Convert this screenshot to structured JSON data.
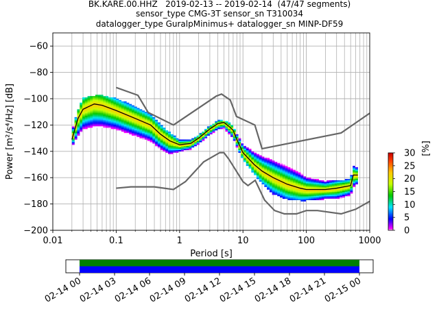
{
  "chart_data": {
    "type": "heatmap",
    "title_lines": [
      "BK.KARE.00.HHZ   2019-02-13 -- 2019-02-14  (47/47 segments)",
      "sensor_type CMG-3T sensor_sn T310034",
      "datalogger_type GuralpMinimus+ datalogger_sn MINP-DF59"
    ],
    "xlabel": "Period [s]",
    "ylabel": "Power [m²/s⁴/Hz] [dB]",
    "x_scale": "log",
    "xlim": [
      0.01,
      1000
    ],
    "ylim": [
      -200,
      -50
    ],
    "x_ticks": [
      "0.01",
      "0.1",
      "1",
      "10",
      "100",
      "1000"
    ],
    "y_ticks": [
      "−60",
      "−80",
      "−100",
      "−120",
      "−140",
      "−160",
      "−180",
      "−200"
    ],
    "grid": true,
    "colorbar": {
      "label": "[%]",
      "ticks": [
        "0",
        "5",
        "10",
        "15",
        "20",
        "25",
        "30"
      ],
      "range": [
        0,
        30
      ]
    },
    "nlnm": [
      [
        0.1,
        -168
      ],
      [
        0.17,
        -167
      ],
      [
        0.4,
        -167
      ],
      [
        0.8,
        -169
      ],
      [
        1.24,
        -163
      ],
      [
        2.4,
        -148
      ],
      [
        4.3,
        -141
      ],
      [
        5.0,
        -141
      ],
      [
        6.0,
        -146
      ],
      [
        10,
        -163
      ],
      [
        12,
        -166
      ],
      [
        15.6,
        -162
      ],
      [
        21.9,
        -177
      ],
      [
        31.6,
        -185
      ],
      [
        45,
        -187.5
      ],
      [
        70,
        -187.5
      ],
      [
        100,
        -185
      ],
      [
        150,
        -185
      ],
      [
        354,
        -187.5
      ],
      [
        600,
        -184
      ],
      [
        1000,
        -178
      ]
    ],
    "nhnm": [
      [
        0.1,
        -91.5
      ],
      [
        0.22,
        -97.4
      ],
      [
        0.32,
        -110.5
      ],
      [
        0.8,
        -120
      ],
      [
        3.8,
        -98
      ],
      [
        4.6,
        -96.5
      ],
      [
        6.3,
        -101
      ],
      [
        7.9,
        -113.5
      ],
      [
        15.4,
        -120
      ],
      [
        20,
        -138
      ],
      [
        354,
        -126
      ],
      [
        1000,
        -111
      ]
    ],
    "mode_line": [
      [
        0.02,
        -131
      ],
      [
        0.025,
        -115
      ],
      [
        0.03,
        -108
      ],
      [
        0.045,
        -104
      ],
      [
        0.06,
        -105
      ],
      [
        0.1,
        -109
      ],
      [
        0.2,
        -115
      ],
      [
        0.35,
        -120
      ],
      [
        0.5,
        -127
      ],
      [
        0.7,
        -132
      ],
      [
        1.0,
        -135
      ],
      [
        1.5,
        -134
      ],
      [
        2.0,
        -130
      ],
      [
        3.0,
        -123
      ],
      [
        4.0,
        -119
      ],
      [
        5.0,
        -118
      ],
      [
        6.0,
        -121
      ],
      [
        7.0,
        -124
      ],
      [
        8.0,
        -131
      ],
      [
        10,
        -141
      ],
      [
        15,
        -150
      ],
      [
        20,
        -155
      ],
      [
        30,
        -160
      ],
      [
        50,
        -165
      ],
      [
        80,
        -168
      ],
      [
        100,
        -169
      ],
      [
        200,
        -169
      ],
      [
        300,
        -168
      ],
      [
        500,
        -166
      ],
      [
        550,
        -158
      ],
      [
        650,
        -158
      ]
    ],
    "psd_bands": [
      {
        "x": [
          0.02,
          0.025,
          0.03,
          0.045,
          0.06,
          0.1,
          0.2,
          0.35,
          0.5,
          0.7,
          1.0,
          1.5,
          2.0,
          3.0,
          4.0,
          5.0,
          6.0,
          7.0,
          8.0,
          10,
          15,
          20,
          30,
          50,
          80,
          100,
          200,
          300,
          500,
          550,
          650
        ],
        "y_low": [
          -136,
          -128,
          -123,
          -121,
          -121,
          -123,
          -128,
          -132,
          -138,
          -142,
          -140,
          -138,
          -134,
          -127,
          -123,
          -122,
          -126,
          -130,
          -136,
          -146,
          -157,
          -164,
          -172,
          -176,
          -177,
          -177,
          -176,
          -176,
          -173,
          -167,
          -163
        ],
        "y_high": [
          -124,
          -108,
          -99,
          -97,
          -97,
          -99,
          -105,
          -111,
          -119,
          -125,
          -131,
          -131,
          -127,
          -120,
          -116,
          -116,
          -117,
          -120,
          -126,
          -134,
          -140,
          -143,
          -146,
          -151,
          -156,
          -159,
          -162,
          -162,
          -160,
          -151,
          -151
        ]
      }
    ],
    "availability": {
      "ticks": [
        "02-14 00",
        "02-14 03",
        "02-14 06",
        "02-14 09",
        "02-14 12",
        "02-14 15",
        "02-14 18",
        "02-14 21",
        "02-15 00"
      ],
      "coverage": [
        0,
        1
      ],
      "colors": [
        "#008000",
        "#0000ff"
      ]
    }
  }
}
